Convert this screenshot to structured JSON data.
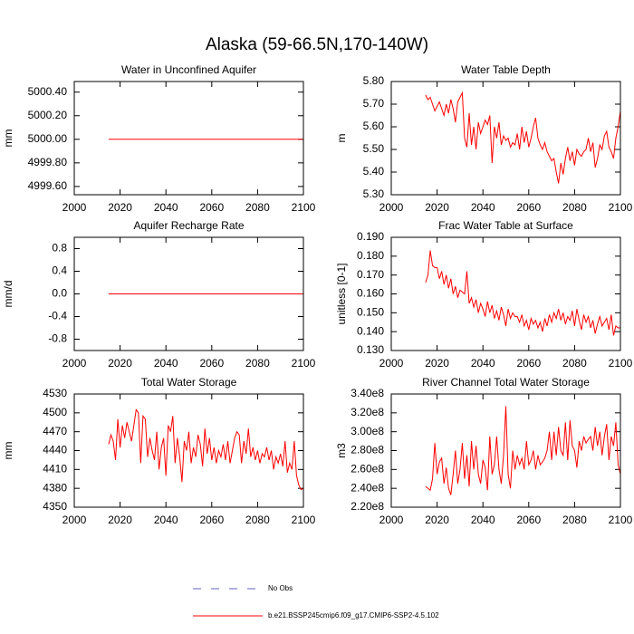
{
  "title": "Alaska (59-66.5N,170-140W)",
  "legend": [
    {
      "name": "No Obs",
      "color": "#6060c0",
      "dash": true
    },
    {
      "name": "b.e21.BSSP245cmip6.f09_g17.CMIP6-SSP2-4.5.102",
      "color": "#ff0000",
      "dash": false
    }
  ],
  "chart_data": [
    {
      "type": "line",
      "title": "Water in Unconfined Aquifer",
      "ylabel": "mm",
      "color": "#ff0000",
      "xlim": [
        2000,
        2100
      ],
      "xticks": [
        2000,
        2020,
        2040,
        2060,
        2080,
        2100
      ],
      "ylim": [
        4999.53,
        5000.49
      ],
      "yticks": [
        {
          "value": 4999.6,
          "label": "4999.60"
        },
        {
          "value": 4999.8,
          "label": "4999.80"
        },
        {
          "value": 5000,
          "label": "5000.00"
        },
        {
          "value": 5000.2,
          "label": "5000.20"
        },
        {
          "value": 5000.4,
          "label": "5000.40"
        }
      ],
      "x": [
        2015,
        2016,
        2017,
        2018,
        2019,
        2020,
        2021,
        2022,
        2023,
        2024,
        2025,
        2026,
        2027,
        2028,
        2029,
        2030,
        2031,
        2032,
        2033,
        2034,
        2035,
        2036,
        2037,
        2038,
        2039,
        2040,
        2041,
        2042,
        2043,
        2044,
        2045,
        2046,
        2047,
        2048,
        2049,
        2050,
        2051,
        2052,
        2053,
        2054,
        2055,
        2056,
        2057,
        2058,
        2059,
        2060,
        2061,
        2062,
        2063,
        2064,
        2065,
        2066,
        2067,
        2068,
        2069,
        2070,
        2071,
        2072,
        2073,
        2074,
        2075,
        2076,
        2077,
        2078,
        2079,
        2080,
        2081,
        2082,
        2083,
        2084,
        2085,
        2086,
        2087,
        2088,
        2089,
        2090,
        2091,
        2092,
        2093,
        2094,
        2095,
        2096,
        2097,
        2098,
        2099,
        2100
      ],
      "values": [
        5000,
        5000,
        5000,
        5000,
        5000,
        5000,
        5000,
        5000,
        5000,
        5000,
        5000,
        5000,
        5000,
        5000,
        5000,
        5000,
        5000,
        5000,
        5000,
        5000,
        5000,
        5000,
        5000,
        5000,
        5000,
        5000,
        5000,
        5000,
        5000,
        5000,
        5000,
        5000,
        5000,
        5000,
        5000,
        5000,
        5000,
        5000,
        5000,
        5000,
        5000,
        5000,
        5000,
        5000,
        5000,
        5000,
        5000,
        5000,
        5000,
        5000,
        5000,
        5000,
        5000,
        5000,
        5000,
        5000,
        5000,
        5000,
        5000,
        5000,
        5000,
        5000,
        5000,
        5000,
        5000,
        5000,
        5000,
        5000,
        5000,
        5000,
        5000,
        5000,
        5000,
        5000,
        5000,
        5000,
        5000,
        5000,
        5000,
        5000,
        5000,
        5000,
        5000,
        5000,
        5000,
        5000
      ]
    },
    {
      "type": "line",
      "title": "Water Table Depth",
      "ylabel": "m",
      "color": "#ff0000",
      "xlim": [
        2000,
        2100
      ],
      "xticks": [
        2000,
        2020,
        2040,
        2060,
        2080,
        2100
      ],
      "ylim": [
        5.3,
        5.8
      ],
      "yticks": [
        {
          "value": 5.3,
          "label": "5.30"
        },
        {
          "value": 5.4,
          "label": "5.40"
        },
        {
          "value": 5.5,
          "label": "5.50"
        },
        {
          "value": 5.6,
          "label": "5.60"
        },
        {
          "value": 5.7,
          "label": "5.70"
        },
        {
          "value": 5.8,
          "label": "5.80"
        }
      ],
      "x": [
        2015,
        2016,
        2017,
        2018,
        2019,
        2020,
        2021,
        2022,
        2023,
        2024,
        2025,
        2026,
        2027,
        2028,
        2029,
        2030,
        2031,
        2032,
        2033,
        2034,
        2035,
        2036,
        2037,
        2038,
        2039,
        2040,
        2041,
        2042,
        2043,
        2044,
        2045,
        2046,
        2047,
        2048,
        2049,
        2050,
        2051,
        2052,
        2053,
        2054,
        2055,
        2056,
        2057,
        2058,
        2059,
        2060,
        2061,
        2062,
        2063,
        2064,
        2065,
        2066,
        2067,
        2068,
        2069,
        2070,
        2071,
        2072,
        2073,
        2074,
        2075,
        2076,
        2077,
        2078,
        2079,
        2080,
        2081,
        2082,
        2083,
        2084,
        2085,
        2086,
        2087,
        2088,
        2089,
        2090,
        2091,
        2092,
        2093,
        2094,
        2095,
        2096,
        2097,
        2098,
        2099,
        2100
      ],
      "values": [
        5.74,
        5.72,
        5.73,
        5.7,
        5.67,
        5.69,
        5.71,
        5.68,
        5.65,
        5.7,
        5.66,
        5.72,
        5.68,
        5.62,
        5.71,
        5.73,
        5.75,
        5.55,
        5.51,
        5.66,
        5.52,
        5.6,
        5.5,
        5.62,
        5.57,
        5.6,
        5.63,
        5.61,
        5.65,
        5.44,
        5.6,
        5.55,
        5.62,
        5.52,
        5.56,
        5.54,
        5.55,
        5.51,
        5.53,
        5.52,
        5.57,
        5.5,
        5.6,
        5.53,
        5.58,
        5.51,
        5.55,
        5.6,
        5.64,
        5.55,
        5.52,
        5.5,
        5.53,
        5.49,
        5.47,
        5.45,
        5.46,
        5.4,
        5.35,
        5.44,
        5.39,
        5.46,
        5.51,
        5.45,
        5.49,
        5.43,
        5.5,
        5.48,
        5.47,
        5.49,
        5.5,
        5.55,
        5.49,
        5.53,
        5.42,
        5.46,
        5.52,
        5.5,
        5.56,
        5.58,
        5.51,
        5.49,
        5.46,
        5.55,
        5.6,
        5.67
      ]
    },
    {
      "type": "line",
      "title": "Aquifer Recharge Rate",
      "ylabel": "mm/d",
      "color": "#ff0000",
      "xlim": [
        2000,
        2100
      ],
      "xticks": [
        2000,
        2020,
        2040,
        2060,
        2080,
        2100
      ],
      "ylim": [
        -1,
        1
      ],
      "yticks": [
        -0.8,
        -0.4,
        {
          "value": 0,
          "label": "0.0"
        },
        0.4,
        0.8
      ],
      "x": [
        2015,
        2016,
        2017,
        2018,
        2019,
        2020,
        2021,
        2022,
        2023,
        2024,
        2025,
        2026,
        2027,
        2028,
        2029,
        2030,
        2031,
        2032,
        2033,
        2034,
        2035,
        2036,
        2037,
        2038,
        2039,
        2040,
        2041,
        2042,
        2043,
        2044,
        2045,
        2046,
        2047,
        2048,
        2049,
        2050,
        2051,
        2052,
        2053,
        2054,
        2055,
        2056,
        2057,
        2058,
        2059,
        2060,
        2061,
        2062,
        2063,
        2064,
        2065,
        2066,
        2067,
        2068,
        2069,
        2070,
        2071,
        2072,
        2073,
        2074,
        2075,
        2076,
        2077,
        2078,
        2079,
        2080,
        2081,
        2082,
        2083,
        2084,
        2085,
        2086,
        2087,
        2088,
        2089,
        2090,
        2091,
        2092,
        2093,
        2094,
        2095,
        2096,
        2097,
        2098,
        2099,
        2100
      ],
      "values": [
        0,
        0,
        0,
        0,
        0,
        0,
        0,
        0,
        0,
        0,
        0,
        0,
        0,
        0,
        0,
        0,
        0,
        0,
        0,
        0,
        0,
        0,
        0,
        0,
        0,
        0,
        0,
        0,
        0,
        0,
        0,
        0,
        0,
        0,
        0,
        0,
        0,
        0,
        0,
        0,
        0,
        0,
        0,
        0,
        0,
        0,
        0,
        0,
        0,
        0,
        0,
        0,
        0,
        0,
        0,
        0,
        0,
        0,
        0,
        0,
        0,
        0,
        0,
        0,
        0,
        0,
        0,
        0,
        0,
        0,
        0,
        0,
        0,
        0,
        0,
        0,
        0,
        0,
        0,
        0,
        0,
        0,
        0,
        0,
        0,
        0
      ]
    },
    {
      "type": "line",
      "title": "Frac Water Table at Surface",
      "ylabel": "unitless [0-1]",
      "color": "#ff0000",
      "xlim": [
        2000,
        2100
      ],
      "xticks": [
        2000,
        2020,
        2040,
        2060,
        2080,
        2100
      ],
      "ylim": [
        0.13,
        0.19
      ],
      "yticks": [
        {
          "value": 0.13,
          "label": "0.130"
        },
        {
          "value": 0.14,
          "label": "0.140"
        },
        {
          "value": 0.15,
          "label": "0.150"
        },
        {
          "value": 0.16,
          "label": "0.160"
        },
        {
          "value": 0.17,
          "label": "0.170"
        },
        {
          "value": 0.18,
          "label": "0.180"
        },
        {
          "value": 0.19,
          "label": "0.190"
        }
      ],
      "x": [
        2015,
        2016,
        2017,
        2018,
        2019,
        2020,
        2021,
        2022,
        2023,
        2024,
        2025,
        2026,
        2027,
        2028,
        2029,
        2030,
        2031,
        2032,
        2033,
        2034,
        2035,
        2036,
        2037,
        2038,
        2039,
        2040,
        2041,
        2042,
        2043,
        2044,
        2045,
        2046,
        2047,
        2048,
        2049,
        2050,
        2051,
        2052,
        2053,
        2054,
        2055,
        2056,
        2057,
        2058,
        2059,
        2060,
        2061,
        2062,
        2063,
        2064,
        2065,
        2066,
        2067,
        2068,
        2069,
        2070,
        2071,
        2072,
        2073,
        2074,
        2075,
        2076,
        2077,
        2078,
        2079,
        2080,
        2081,
        2082,
        2083,
        2084,
        2085,
        2086,
        2087,
        2088,
        2089,
        2090,
        2091,
        2092,
        2093,
        2094,
        2095,
        2096,
        2097,
        2098,
        2099,
        2100
      ],
      "values": [
        0.166,
        0.17,
        0.183,
        0.175,
        0.174,
        0.174,
        0.168,
        0.172,
        0.165,
        0.17,
        0.163,
        0.168,
        0.16,
        0.164,
        0.158,
        0.162,
        0.161,
        0.16,
        0.172,
        0.155,
        0.158,
        0.153,
        0.157,
        0.15,
        0.155,
        0.152,
        0.148,
        0.156,
        0.15,
        0.154,
        0.147,
        0.151,
        0.146,
        0.153,
        0.149,
        0.143,
        0.152,
        0.147,
        0.15,
        0.148,
        0.148,
        0.145,
        0.149,
        0.143,
        0.146,
        0.141,
        0.147,
        0.144,
        0.146,
        0.142,
        0.145,
        0.14,
        0.147,
        0.143,
        0.149,
        0.145,
        0.15,
        0.147,
        0.152,
        0.146,
        0.15,
        0.144,
        0.148,
        0.146,
        0.151,
        0.143,
        0.152,
        0.146,
        0.141,
        0.149,
        0.145,
        0.148,
        0.142,
        0.146,
        0.139,
        0.144,
        0.148,
        0.143,
        0.145,
        0.147,
        0.141,
        0.149,
        0.138,
        0.143,
        0.142,
        0.142
      ]
    },
    {
      "type": "line",
      "title": "Total Water Storage",
      "ylabel": "mm",
      "color": "#ff0000",
      "xlim": [
        2000,
        2100
      ],
      "xticks": [
        2000,
        2020,
        2040,
        2060,
        2080,
        2100
      ],
      "ylim": [
        4350,
        4530
      ],
      "yticks": [
        4350,
        4380,
        4410,
        4440,
        4470,
        4500,
        4530
      ],
      "x": [
        2015,
        2016,
        2017,
        2018,
        2019,
        2020,
        2021,
        2022,
        2023,
        2024,
        2025,
        2026,
        2027,
        2028,
        2029,
        2030,
        2031,
        2032,
        2033,
        2034,
        2035,
        2036,
        2037,
        2038,
        2039,
        2040,
        2041,
        2042,
        2043,
        2044,
        2045,
        2046,
        2047,
        2048,
        2049,
        2050,
        2051,
        2052,
        2053,
        2054,
        2055,
        2056,
        2057,
        2058,
        2059,
        2060,
        2061,
        2062,
        2063,
        2064,
        2065,
        2066,
        2067,
        2068,
        2069,
        2070,
        2071,
        2072,
        2073,
        2074,
        2075,
        2076,
        2077,
        2078,
        2079,
        2080,
        2081,
        2082,
        2083,
        2084,
        2085,
        2086,
        2087,
        2088,
        2089,
        2090,
        2091,
        2092,
        2093,
        2094,
        2095,
        2096,
        2097,
        2098,
        2099,
        2100
      ],
      "values": [
        4450,
        4465,
        4455,
        4425,
        4490,
        4445,
        4480,
        4460,
        4485,
        4470,
        4455,
        4480,
        4505,
        4500,
        4420,
        4495,
        4490,
        4430,
        4460,
        4440,
        4425,
        4470,
        4410,
        4445,
        4460,
        4400,
        4480,
        4470,
        4495,
        4420,
        4460,
        4430,
        4390,
        4455,
        4440,
        4470,
        4420,
        4445,
        4430,
        4465,
        4450,
        4415,
        4475,
        4435,
        4460,
        4425,
        4445,
        4420,
        4440,
        4430,
        4450,
        4425,
        4455,
        4420,
        4440,
        4460,
        4470,
        4465,
        4420,
        4455,
        4435,
        4475,
        4430,
        4445,
        4425,
        4440,
        4420,
        4435,
        4430,
        4445,
        4425,
        4440,
        4410,
        4430,
        4420,
        4435,
        4415,
        4455,
        4405,
        4420,
        4410,
        4455,
        4400,
        4385,
        4378,
        4380
      ]
    },
    {
      "type": "line",
      "title": "River Channel Total Water Storage",
      "ylabel": "m3",
      "color": "#ff0000",
      "xlim": [
        2000,
        2100
      ],
      "xticks": [
        2000,
        2020,
        2040,
        2060,
        2080,
        2100
      ],
      "ylim": [
        220000000,
        340000000
      ],
      "yticks": [
        {
          "value": 220000000,
          "label": "2.20e8"
        },
        {
          "value": 240000000,
          "label": "2.40e8"
        },
        {
          "value": 260000000,
          "label": "2.60e8"
        },
        {
          "value": 280000000,
          "label": "2.80e8"
        },
        {
          "value": 300000000,
          "label": "3.00e8"
        },
        {
          "value": 320000000,
          "label": "3.20e8"
        },
        {
          "value": 340000000,
          "label": "3.40e8"
        }
      ],
      "x": [
        2015,
        2016,
        2017,
        2018,
        2019,
        2020,
        2021,
        2022,
        2023,
        2024,
        2025,
        2026,
        2027,
        2028,
        2029,
        2030,
        2031,
        2032,
        2033,
        2034,
        2035,
        2036,
        2037,
        2038,
        2039,
        2040,
        2041,
        2042,
        2043,
        2044,
        2045,
        2046,
        2047,
        2048,
        2049,
        2050,
        2051,
        2052,
        2053,
        2054,
        2055,
        2056,
        2057,
        2058,
        2059,
        2060,
        2061,
        2062,
        2063,
        2064,
        2065,
        2066,
        2067,
        2068,
        2069,
        2070,
        2071,
        2072,
        2073,
        2074,
        2075,
        2076,
        2077,
        2078,
        2079,
        2080,
        2081,
        2082,
        2083,
        2084,
        2085,
        2086,
        2087,
        2088,
        2089,
        2090,
        2091,
        2092,
        2093,
        2094,
        2095,
        2096,
        2097,
        2098,
        2099,
        2100
      ],
      "values": [
        242000000,
        240000000,
        238000000,
        250000000,
        288000000,
        255000000,
        268000000,
        272000000,
        245000000,
        262000000,
        240000000,
        233000000,
        255000000,
        280000000,
        245000000,
        260000000,
        288000000,
        250000000,
        275000000,
        242000000,
        290000000,
        260000000,
        285000000,
        255000000,
        245000000,
        270000000,
        262000000,
        238000000,
        295000000,
        255000000,
        265000000,
        295000000,
        260000000,
        245000000,
        275000000,
        327000000,
        255000000,
        240000000,
        280000000,
        260000000,
        275000000,
        265000000,
        272000000,
        260000000,
        290000000,
        265000000,
        270000000,
        280000000,
        260000000,
        275000000,
        265000000,
        268000000,
        272000000,
        280000000,
        300000000,
        270000000,
        300000000,
        275000000,
        305000000,
        280000000,
        275000000,
        310000000,
        270000000,
        312000000,
        285000000,
        280000000,
        262000000,
        290000000,
        280000000,
        295000000,
        288000000,
        292000000,
        295000000,
        280000000,
        305000000,
        285000000,
        300000000,
        275000000,
        295000000,
        308000000,
        270000000,
        295000000,
        285000000,
        310000000,
        265000000,
        255000000
      ]
    }
  ]
}
